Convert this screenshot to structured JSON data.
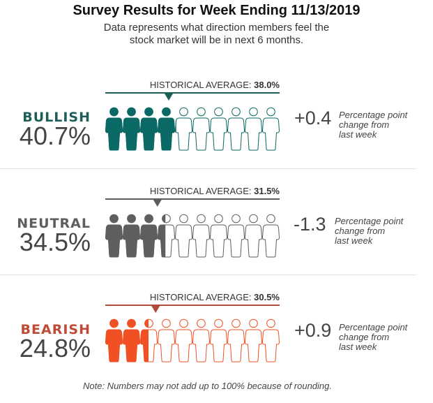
{
  "title": "Survey Results for Week Ending 11/13/2019",
  "subtitle_line1": "Data represents what direction members feel the",
  "subtitle_line2": "stock market will be in next 6 months.",
  "hist_prefix": "HISTORICAL AVERAGE: ",
  "change_desc_line1": "Percentage point",
  "change_desc_line2": "change from",
  "change_desc_line3": "last week",
  "note": "Note: Numbers may not add up to 100% because of rounding.",
  "chart_data": {
    "type": "pictograph",
    "title": "Survey Results for Week Ending 11/13/2019",
    "icons_total": 10,
    "scale_max_percent": 100,
    "series": [
      {
        "name": "BULLISH",
        "value": 40.7,
        "value_label": "40.7%",
        "historical_average": 38.0,
        "historical_label": "38.0%",
        "change": "+0.4",
        "color": "#0a6964",
        "label_color": "#1e5e59",
        "line_color": "#1e5e59"
      },
      {
        "name": "NEUTRAL",
        "value": 34.5,
        "value_label": "34.5%",
        "historical_average": 31.5,
        "historical_label": "31.5%",
        "change": "-1.3",
        "color": "#5e5e5e",
        "label_color": "#5e5e5e",
        "line_color": "#5e5e5e"
      },
      {
        "name": "BEARISH",
        "value": 24.8,
        "value_label": "24.8%",
        "historical_average": 30.5,
        "historical_label": "30.5%",
        "change": "+0.9",
        "color": "#f05023",
        "label_color": "#bf4b37",
        "line_color": "#b04a3a"
      }
    ]
  }
}
